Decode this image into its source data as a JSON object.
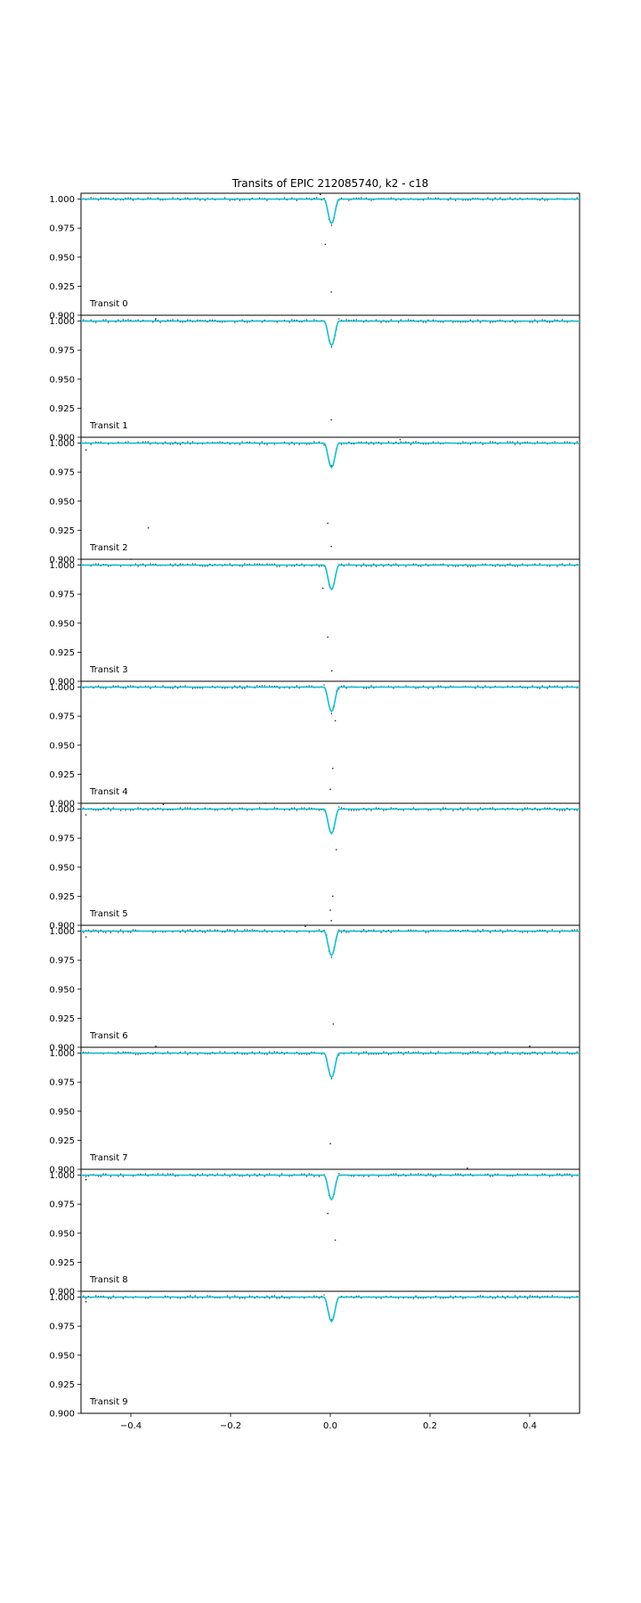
{
  "chart_data": {
    "type": "line",
    "title": "Transits of EPIC 212085740, k2 - c18",
    "xlabel": "",
    "ylabel": "",
    "xlim": [
      -0.5,
      0.5
    ],
    "ylim": [
      0.9,
      1.005
    ],
    "x_ticks": [
      -0.4,
      -0.2,
      0.0,
      0.2,
      0.4
    ],
    "x_tick_labels": [
      "−0.4",
      "−0.2",
      "0.0",
      "0.2",
      "0.4"
    ],
    "y_ticks": [
      1.0,
      0.975,
      0.95,
      0.925,
      0.9
    ],
    "y_tick_labels": [
      "1.000",
      "0.975",
      "0.950",
      "0.925",
      "0.900"
    ],
    "grid": false,
    "model": {
      "color": "#17becf",
      "baseline": 1.0,
      "depth": 0.021,
      "center": 0.0025,
      "half_duration": 0.015
    },
    "data_color": "#222222",
    "panels": [
      {
        "label": "Transit 0",
        "outliers": [
          {
            "x": -0.01,
            "y": 0.961
          },
          {
            "x": 0.002,
            "y": 0.92
          },
          {
            "x": -0.02,
            "y": 1.004
          }
        ]
      },
      {
        "label": "Transit 1",
        "outliers": [
          {
            "x": 0.002,
            "y": 0.915
          },
          {
            "x": 0.01,
            "y": 0.988
          },
          {
            "x": -0.35,
            "y": 1.002
          }
        ]
      },
      {
        "label": "Transit 2",
        "outliers": [
          {
            "x": -0.365,
            "y": 0.927
          },
          {
            "x": -0.005,
            "y": 0.931
          },
          {
            "x": 0.002,
            "y": 0.911
          },
          {
            "x": -0.49,
            "y": 0.994
          },
          {
            "x": 0.14,
            "y": 1.003
          }
        ]
      },
      {
        "label": "Transit 3",
        "outliers": [
          {
            "x": -0.005,
            "y": 0.938
          },
          {
            "x": 0.003,
            "y": 0.909
          },
          {
            "x": -0.4,
            "y": 1.005
          },
          {
            "x": -0.015,
            "y": 0.98
          }
        ]
      },
      {
        "label": "Transit 4",
        "outliers": [
          {
            "x": 0.01,
            "y": 0.971
          },
          {
            "x": 0.005,
            "y": 0.93
          },
          {
            "x": 0.0,
            "y": 0.912
          }
        ]
      },
      {
        "label": "Transit 5",
        "outliers": [
          {
            "x": 0.012,
            "y": 0.965
          },
          {
            "x": 0.005,
            "y": 0.925
          },
          {
            "x": 0.0,
            "y": 0.913
          },
          {
            "x": 0.002,
            "y": 0.904
          },
          {
            "x": -0.13,
            "y": 1.005
          },
          {
            "x": -0.335,
            "y": 1.004
          },
          {
            "x": -0.49,
            "y": 0.995
          }
        ]
      },
      {
        "label": "Transit 6",
        "outliers": [
          {
            "x": 0.006,
            "y": 0.92
          },
          {
            "x": -0.49,
            "y": 0.995
          },
          {
            "x": -0.05,
            "y": 1.004
          }
        ]
      },
      {
        "label": "Transit 7",
        "outliers": [
          {
            "x": 0.0,
            "y": 0.922
          },
          {
            "x": -0.35,
            "y": 1.006
          },
          {
            "x": 0.4,
            "y": 1.006
          }
        ]
      },
      {
        "label": "Transit 8",
        "outliers": [
          {
            "x": -0.005,
            "y": 0.967
          },
          {
            "x": 0.01,
            "y": 0.944
          },
          {
            "x": 0.275,
            "y": 1.006
          },
          {
            "x": -0.49,
            "y": 0.996
          }
        ]
      },
      {
        "label": "Transit 9",
        "outliers": [
          {
            "x": -0.49,
            "y": 0.996
          }
        ]
      }
    ]
  }
}
